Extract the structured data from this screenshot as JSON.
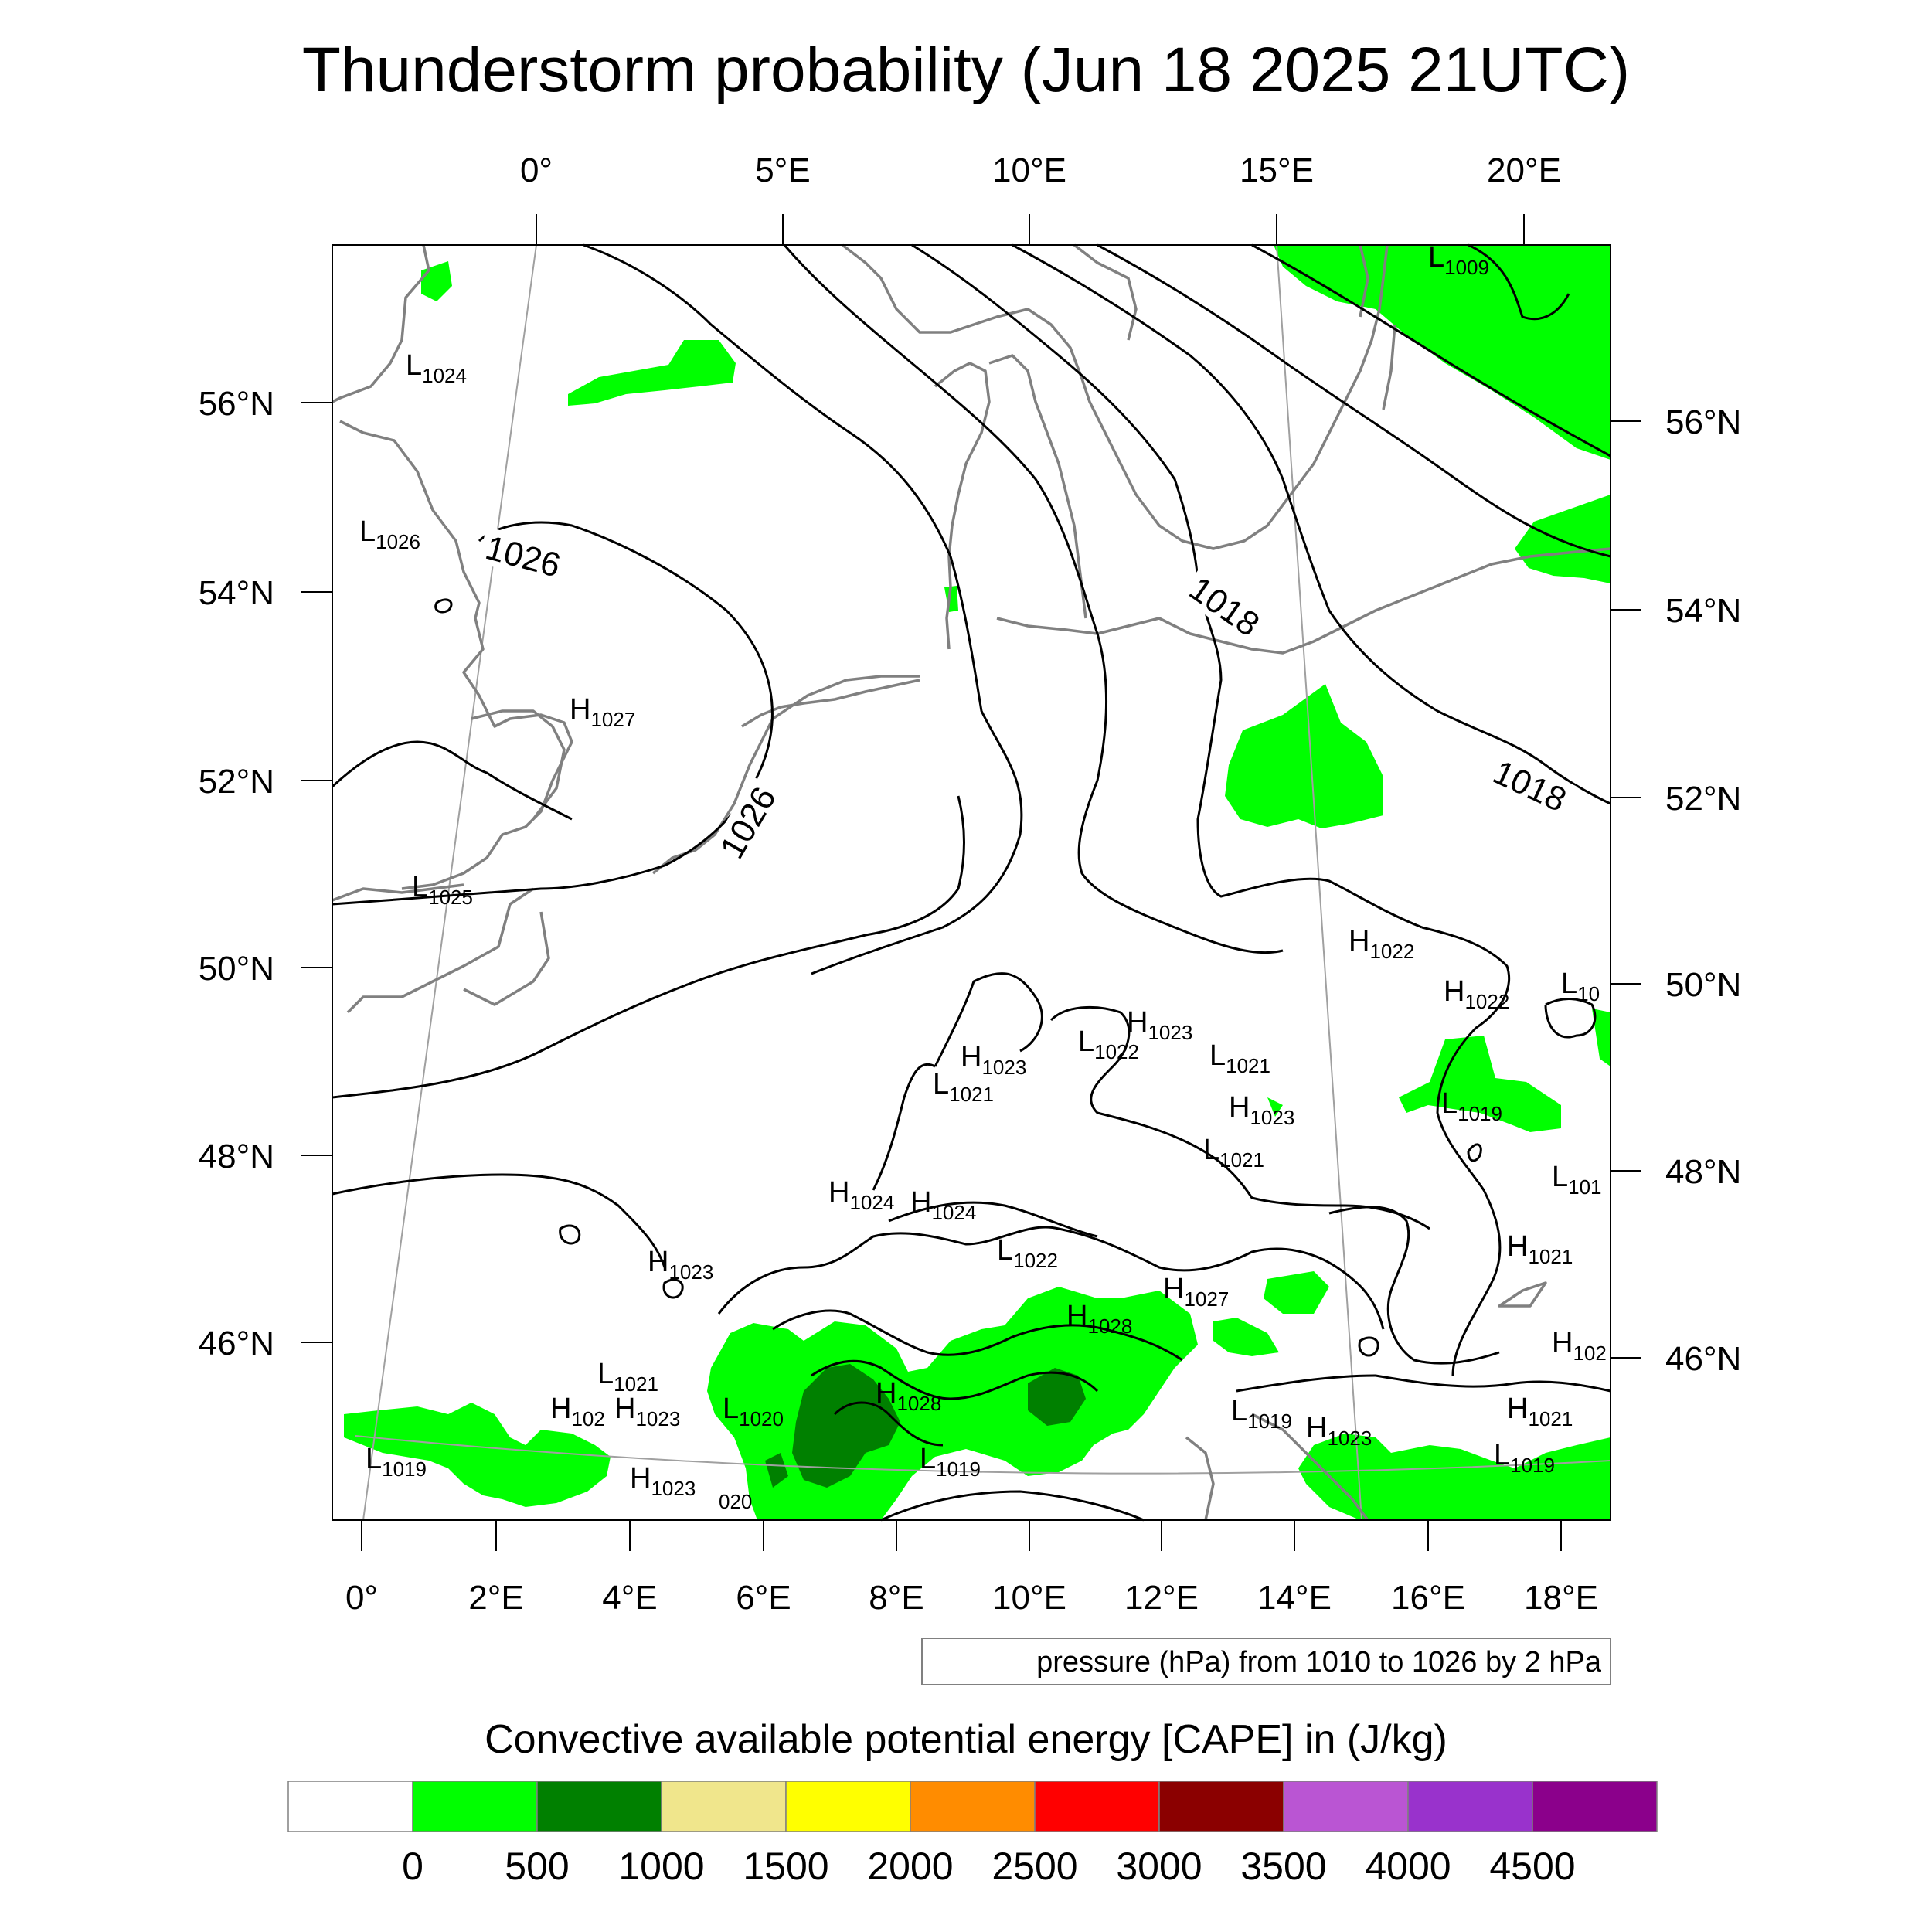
{
  "title": "Thunderstorm probability (Jun 18 2025 21UTC)",
  "top_axis": [
    "0°",
    "5°E",
    "10°E",
    "15°E",
    "20°E"
  ],
  "bottom_axis": [
    "0°",
    "2°E",
    "4°E",
    "6°E",
    "8°E",
    "10°E",
    "12°E",
    "14°E",
    "16°E",
    "18°E"
  ],
  "left_axis": [
    "56°N",
    "54°N",
    "52°N",
    "50°N",
    "48°N",
    "46°N"
  ],
  "right_axis": [
    "56°N",
    "54°N",
    "52°N",
    "50°N",
    "48°N",
    "46°N"
  ],
  "contour_labels": [
    "1026",
    "1026",
    "1018",
    "1018"
  ],
  "pressure_centers": [
    {
      "type": "L",
      "value": "1009"
    },
    {
      "type": "L",
      "value": "1024"
    },
    {
      "type": "L",
      "value": "1026"
    },
    {
      "type": "H",
      "value": "1027"
    },
    {
      "type": "L",
      "value": "1025"
    },
    {
      "type": "H",
      "value": "1022"
    },
    {
      "type": "H",
      "value": "1022"
    },
    {
      "type": "L",
      "value": "10"
    },
    {
      "type": "H",
      "value": "1023"
    },
    {
      "type": "L",
      "value": "1022"
    },
    {
      "type": "L",
      "value": "1021"
    },
    {
      "type": "H",
      "value": "1023"
    },
    {
      "type": "L",
      "value": "1021"
    },
    {
      "type": "L",
      "value": "1019"
    },
    {
      "type": "H",
      "value": "1023"
    },
    {
      "type": "L",
      "value": "1021"
    },
    {
      "type": "L",
      "value": "101"
    },
    {
      "type": "H",
      "value": "1024"
    },
    {
      "type": "H",
      "value": "1024"
    },
    {
      "type": "L",
      "value": "1022"
    },
    {
      "type": "H",
      "value": "1023"
    },
    {
      "type": "H",
      "value": "1021"
    },
    {
      "type": "H",
      "value": "1027"
    },
    {
      "type": "H",
      "value": "1028"
    },
    {
      "type": "H",
      "value": "102"
    },
    {
      "type": "L",
      "value": "1021"
    },
    {
      "type": "H",
      "value": "102"
    },
    {
      "type": "H",
      "value": "1023"
    },
    {
      "type": "L",
      "value": "1020"
    },
    {
      "type": "H",
      "value": "1028"
    },
    {
      "type": "L",
      "value": "1019"
    },
    {
      "type": "H",
      "value": "1023"
    },
    {
      "type": "H",
      "value": "1023"
    },
    {
      "type": "H",
      "value": "1021"
    },
    {
      "type": "L",
      "value": "1019"
    },
    {
      "type": "L",
      "value": "1019"
    },
    {
      "type": "L",
      "value": "1019"
    }
  ],
  "partial_label": "020",
  "pressure_note": "pressure (hPa) from 1010 to 1026 by 2 hPa",
  "colorbar": {
    "title": "Convective available potential energy [CAPE] in (J/kg)",
    "colors": [
      "#ffffff",
      "#00ff00",
      "#008000",
      "#f0e68c",
      "#ffff00",
      "#ff8c00",
      "#ff0000",
      "#8b0000",
      "#ba55d3",
      "#9932cc",
      "#8b008b"
    ],
    "ticks": [
      "0",
      "500",
      "1000",
      "1500",
      "2000",
      "2500",
      "3000",
      "3500",
      "4000",
      "4500"
    ]
  },
  "colors": {
    "cape_low": "#00ff00",
    "cape_mid": "#008000",
    "isobar": "#000000",
    "coastline": "#808080",
    "graticule": "#a0a0a0"
  }
}
